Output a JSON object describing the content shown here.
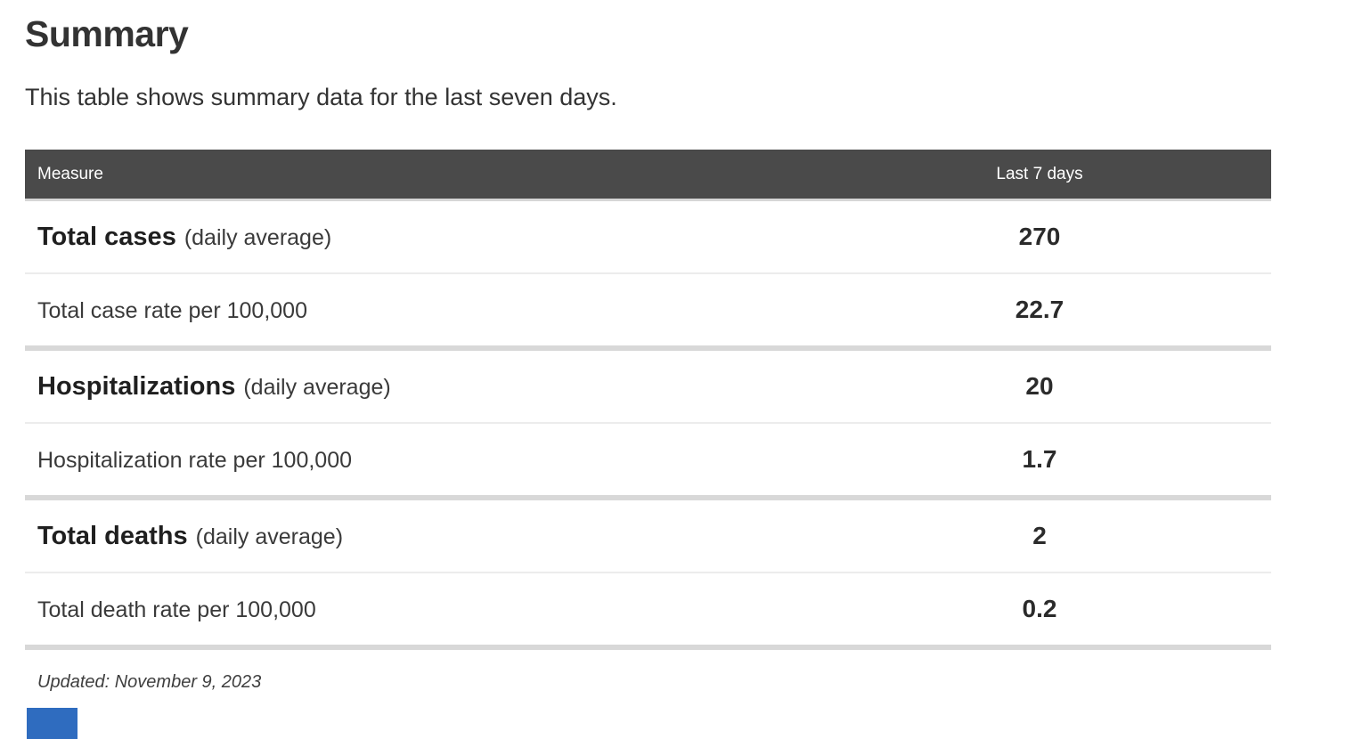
{
  "page": {
    "title": "Summary",
    "subtitle": "This table shows summary data for the last seven days.",
    "updated": "Updated: November 9, 2023"
  },
  "table": {
    "columns": [
      "Measure",
      "Last 7 days"
    ],
    "rows": [
      {
        "measure_bold": "Total cases",
        "measure_normal": "(daily average)",
        "value": "270",
        "divider_before": "none"
      },
      {
        "measure_bold": "",
        "measure_normal": "Total case rate per 100,000",
        "value": "22.7",
        "divider_before": "thin"
      },
      {
        "measure_bold": "Hospitalizations",
        "measure_normal": "(daily average)",
        "value": "20",
        "divider_before": "thick"
      },
      {
        "measure_bold": "",
        "measure_normal": "Hospitalization rate per 100,000",
        "value": "1.7",
        "divider_before": "thin"
      },
      {
        "measure_bold": "Total deaths",
        "measure_normal": "(daily average)",
        "value": "2",
        "divider_before": "thick"
      },
      {
        "measure_bold": "",
        "measure_normal": "Total death rate per 100,000",
        "value": "0.2",
        "divider_before": "thin"
      }
    ]
  },
  "colors": {
    "header_background": "#4a4a4a",
    "header_text": "#ffffff",
    "thick_divider": "#d8d8d8",
    "thin_divider": "#ececec",
    "blue_element": "#2f6cbf"
  }
}
